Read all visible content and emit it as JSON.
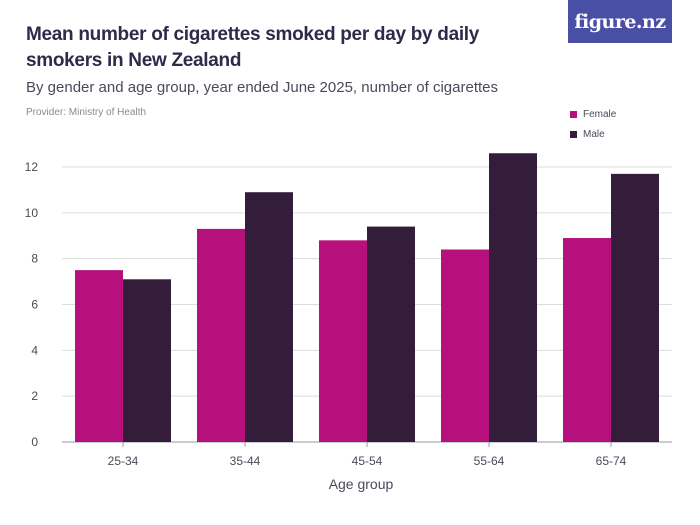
{
  "header": {
    "title": "Mean number of cigarettes smoked per day by daily smokers in New Zealand",
    "subtitle": "By gender and age group, year ended June 2025, number of cigarettes",
    "provider": "Provider: Ministry of Health",
    "logo_text": "figure.nz"
  },
  "colors": {
    "female": "#b5107c",
    "male": "#331d3b",
    "logo_bg": "#4a4fa6",
    "grid": "#dcdcdc"
  },
  "chart_data": {
    "type": "bar",
    "title": "Mean number of cigarettes smoked per day by daily smokers in New Zealand",
    "subtitle": "By gender and age group, year ended June 2025, number of cigarettes",
    "xlabel": "Age group",
    "ylabel": "",
    "categories": [
      "25-34",
      "35-44",
      "45-54",
      "55-64",
      "65-74"
    ],
    "series": [
      {
        "name": "Female",
        "values": [
          7.5,
          9.3,
          8.8,
          8.4,
          8.9
        ]
      },
      {
        "name": "Male",
        "values": [
          7.1,
          10.9,
          9.4,
          12.6,
          11.7
        ]
      }
    ],
    "ylim": [
      0,
      12
    ],
    "yticks": [
      "0",
      "2",
      "4",
      "6",
      "8",
      "10",
      "12"
    ],
    "grid": true,
    "legend_position": "top-right"
  }
}
